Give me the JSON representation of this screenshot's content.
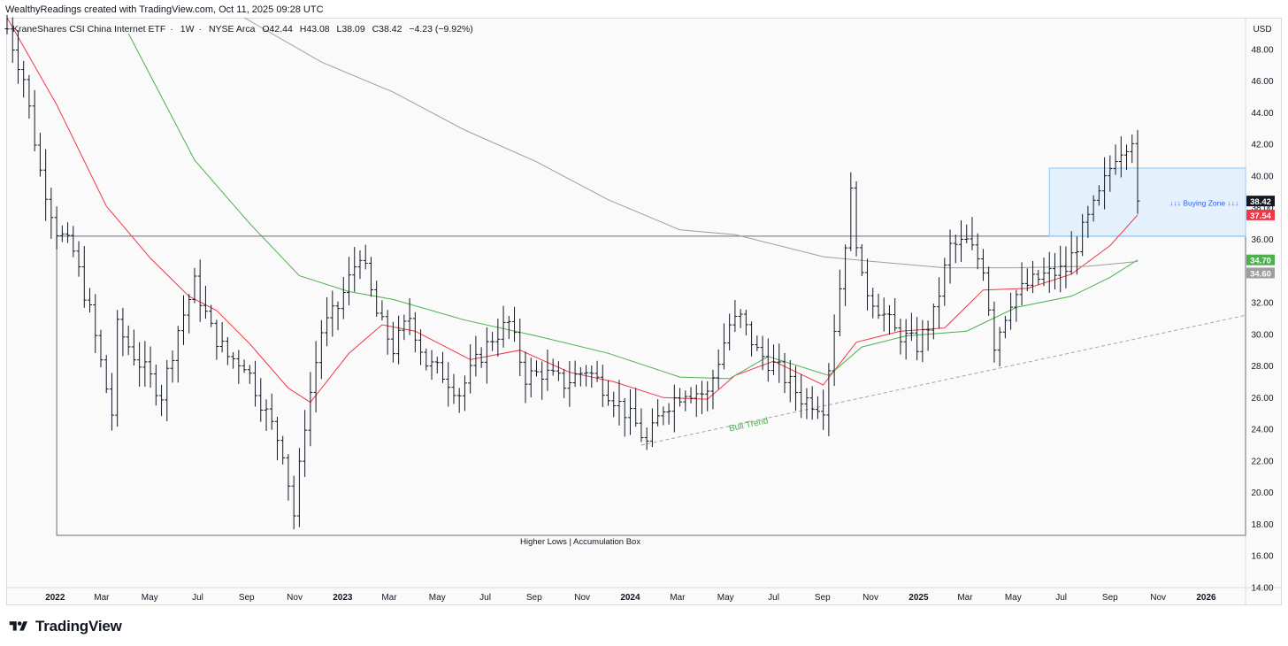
{
  "caption": "WealthyReadings created with TradingView.com, Oct 11, 2025 09:28 UTC",
  "header": {
    "symbol": "KraneShares CSI China Internet ETF",
    "interval": "1W",
    "exchange": "NYSE Arca",
    "open": "O42.44",
    "high": "H43.08",
    "low": "L38.09",
    "close": "C38.42",
    "change": "−4.23 (−9.92%)"
  },
  "currency": "USD",
  "footer": {
    "brand": "TradingView",
    "logo_icon": "tradingview-logo-icon"
  },
  "colors": {
    "up": "#131722",
    "ma_fast": "#f23645",
    "ma_mid": "#4caf50",
    "ma_slow": "#9e9e9e",
    "zone": "#bbdefb",
    "zone_label": "#2962ff",
    "trend": "#a5a5a5",
    "trend_label": "#4caf50"
  },
  "chart_data": {
    "type": "ohlc_bar",
    "title": "KraneShares CSI China Internet ETF · 1W · NYSE Arca",
    "y_axis": {
      "min": 14,
      "max": 50,
      "ticks": [
        14,
        16,
        18,
        20,
        22,
        24,
        26,
        28,
        30,
        32,
        34,
        36,
        38,
        40,
        42,
        44,
        46,
        48
      ],
      "tick_labels": [
        "14.00",
        "16.00",
        "18.00",
        "20.00",
        "22.00",
        "24.00",
        "26.00",
        "28.00",
        "30.00",
        "32.00",
        "34.00",
        "36.00",
        "38.00",
        "40.00",
        "42.00",
        "44.00",
        "46.00",
        "48.00"
      ]
    },
    "x_axis": {
      "start": "2021-11-01",
      "end": "2026-02-20",
      "ticks": [
        {
          "date": "2022-01-01",
          "label": "2022",
          "bold": true
        },
        {
          "date": "2022-03-01",
          "label": "Mar"
        },
        {
          "date": "2022-05-01",
          "label": "May"
        },
        {
          "date": "2022-07-01",
          "label": "Jul"
        },
        {
          "date": "2022-09-01",
          "label": "Sep"
        },
        {
          "date": "2022-11-01",
          "label": "Nov"
        },
        {
          "date": "2023-01-01",
          "label": "2023",
          "bold": true
        },
        {
          "date": "2023-03-01",
          "label": "Mar"
        },
        {
          "date": "2023-05-01",
          "label": "May"
        },
        {
          "date": "2023-07-01",
          "label": "Jul"
        },
        {
          "date": "2023-09-01",
          "label": "Sep"
        },
        {
          "date": "2023-11-01",
          "label": "Nov"
        },
        {
          "date": "2024-01-01",
          "label": "2024",
          "bold": true
        },
        {
          "date": "2024-03-01",
          "label": "Mar"
        },
        {
          "date": "2024-05-01",
          "label": "May"
        },
        {
          "date": "2024-07-01",
          "label": "Jul"
        },
        {
          "date": "2024-09-01",
          "label": "Sep"
        },
        {
          "date": "2024-11-01",
          "label": "Nov"
        },
        {
          "date": "2025-01-01",
          "label": "2025",
          "bold": true
        },
        {
          "date": "2025-03-01",
          "label": "Mar"
        },
        {
          "date": "2025-05-01",
          "label": "May"
        },
        {
          "date": "2025-07-01",
          "label": "Jul"
        },
        {
          "date": "2025-09-01",
          "label": "Sep"
        },
        {
          "date": "2025-11-01",
          "label": "Nov"
        },
        {
          "date": "2026-01-01",
          "label": "2026",
          "bold": true
        }
      ]
    },
    "close_series": [
      {
        "date": "2021-11-01",
        "close": 49.3
      },
      {
        "date": "2021-11-22",
        "close": 46.2
      },
      {
        "date": "2021-12-13",
        "close": 40.3
      },
      {
        "date": "2022-01-03",
        "close": 36.6
      },
      {
        "date": "2022-01-24",
        "close": 35.2
      },
      {
        "date": "2022-02-14",
        "close": 31.4
      },
      {
        "date": "2022-03-14",
        "close": 25.0
      },
      {
        "date": "2022-03-21",
        "close": 30.4
      },
      {
        "date": "2022-04-11",
        "close": 28.7
      },
      {
        "date": "2022-05-02",
        "close": 27.2
      },
      {
        "date": "2022-05-16",
        "close": 26.2
      },
      {
        "date": "2022-06-06",
        "close": 30.3
      },
      {
        "date": "2022-06-27",
        "close": 33.2
      },
      {
        "date": "2022-07-18",
        "close": 30.3
      },
      {
        "date": "2022-08-08",
        "close": 28.6
      },
      {
        "date": "2022-08-29",
        "close": 28.2
      },
      {
        "date": "2022-09-26",
        "close": 25.0
      },
      {
        "date": "2022-10-17",
        "close": 22.7
      },
      {
        "date": "2022-10-31",
        "close": 18.6
      },
      {
        "date": "2022-11-14",
        "close": 24.4
      },
      {
        "date": "2022-12-05",
        "close": 30.2
      },
      {
        "date": "2022-12-26",
        "close": 31.7
      },
      {
        "date": "2023-01-23",
        "close": 35.2
      },
      {
        "date": "2023-02-13",
        "close": 31.3
      },
      {
        "date": "2023-03-06",
        "close": 29.1
      },
      {
        "date": "2023-03-27",
        "close": 31.1
      },
      {
        "date": "2023-04-17",
        "close": 28.2
      },
      {
        "date": "2023-05-08",
        "close": 27.5
      },
      {
        "date": "2023-05-29",
        "close": 26.3
      },
      {
        "date": "2023-06-19",
        "close": 28.2
      },
      {
        "date": "2023-07-10",
        "close": 29.8
      },
      {
        "date": "2023-07-31",
        "close": 30.7
      },
      {
        "date": "2023-08-21",
        "close": 27.3
      },
      {
        "date": "2023-09-11",
        "close": 27.6
      },
      {
        "date": "2023-10-09",
        "close": 26.9
      },
      {
        "date": "2023-11-06",
        "close": 27.8
      },
      {
        "date": "2023-12-04",
        "close": 26.4
      },
      {
        "date": "2024-01-08",
        "close": 24.3
      },
      {
        "date": "2024-01-22",
        "close": 23.1
      },
      {
        "date": "2024-02-12",
        "close": 25.4
      },
      {
        "date": "2024-03-11",
        "close": 26.5
      },
      {
        "date": "2024-04-08",
        "close": 26.2
      },
      {
        "date": "2024-05-06",
        "close": 30.6
      },
      {
        "date": "2024-05-20",
        "close": 31.0
      },
      {
        "date": "2024-06-10",
        "close": 28.9
      },
      {
        "date": "2024-07-08",
        "close": 27.7
      },
      {
        "date": "2024-08-05",
        "close": 26.0
      },
      {
        "date": "2024-09-02",
        "close": 25.5
      },
      {
        "date": "2024-09-23",
        "close": 33.0
      },
      {
        "date": "2024-10-07",
        "close": 38.8
      },
      {
        "date": "2024-10-21",
        "close": 33.3
      },
      {
        "date": "2024-11-11",
        "close": 31.7
      },
      {
        "date": "2024-12-02",
        "close": 30.2
      },
      {
        "date": "2024-12-30",
        "close": 29.3
      },
      {
        "date": "2025-01-20",
        "close": 31.2
      },
      {
        "date": "2025-02-10",
        "close": 35.5
      },
      {
        "date": "2025-03-03",
        "close": 35.8
      },
      {
        "date": "2025-03-24",
        "close": 34.3
      },
      {
        "date": "2025-04-07",
        "close": 29.4
      },
      {
        "date": "2025-04-28",
        "close": 32.2
      },
      {
        "date": "2025-05-19",
        "close": 33.1
      },
      {
        "date": "2025-06-09",
        "close": 33.7
      },
      {
        "date": "2025-07-07",
        "close": 34.1
      },
      {
        "date": "2025-07-28",
        "close": 36.5
      },
      {
        "date": "2025-08-18",
        "close": 38.7
      },
      {
        "date": "2025-09-08",
        "close": 41.4
      },
      {
        "date": "2025-09-29",
        "close": 42.5
      },
      {
        "date": "2025-10-06",
        "close": 38.42
      }
    ],
    "moving_averages": [
      {
        "name": "MA fast",
        "color": "red",
        "points": [
          [
            "2021-11-01",
            50.0
          ],
          [
            "2022-01-03",
            44.5
          ],
          [
            "2022-03-07",
            38.1
          ],
          [
            "2022-05-02",
            34.8
          ],
          [
            "2022-06-20",
            32.4
          ],
          [
            "2022-07-25",
            31.5
          ],
          [
            "2022-09-05",
            29.4
          ],
          [
            "2022-10-24",
            26.6
          ],
          [
            "2022-11-21",
            25.7
          ],
          [
            "2023-01-09",
            28.8
          ],
          [
            "2023-02-20",
            30.6
          ],
          [
            "2023-04-03",
            30.2
          ],
          [
            "2023-06-12",
            28.4
          ],
          [
            "2023-08-14",
            29.0
          ],
          [
            "2023-10-16",
            27.6
          ],
          [
            "2023-12-11",
            27.0
          ],
          [
            "2024-02-12",
            26.0
          ],
          [
            "2024-04-08",
            25.9
          ],
          [
            "2024-05-13",
            27.4
          ],
          [
            "2024-07-01",
            28.3
          ],
          [
            "2024-09-02",
            26.8
          ],
          [
            "2024-10-14",
            29.5
          ],
          [
            "2024-12-09",
            30.2
          ],
          [
            "2025-02-03",
            30.4
          ],
          [
            "2025-03-24",
            32.8
          ],
          [
            "2025-05-19",
            32.9
          ],
          [
            "2025-07-14",
            33.8
          ],
          [
            "2025-09-01",
            35.6
          ],
          [
            "2025-10-06",
            37.54
          ]
        ]
      },
      {
        "name": "MA mid",
        "color": "green",
        "points": [
          [
            "2022-04-04",
            49.0
          ],
          [
            "2022-06-27",
            41.0
          ],
          [
            "2022-09-05",
            37.0
          ],
          [
            "2022-11-07",
            33.7
          ],
          [
            "2023-01-09",
            32.7
          ],
          [
            "2023-03-06",
            32.2
          ],
          [
            "2023-06-05",
            30.9
          ],
          [
            "2023-09-04",
            29.9
          ],
          [
            "2023-12-04",
            28.8
          ],
          [
            "2024-03-04",
            27.3
          ],
          [
            "2024-05-06",
            27.2
          ],
          [
            "2024-06-24",
            28.6
          ],
          [
            "2024-09-09",
            27.4
          ],
          [
            "2024-10-21",
            29.2
          ],
          [
            "2024-12-16",
            29.9
          ],
          [
            "2025-03-03",
            30.2
          ],
          [
            "2025-05-05",
            31.7
          ],
          [
            "2025-07-14",
            32.4
          ],
          [
            "2025-09-01",
            33.6
          ],
          [
            "2025-10-06",
            34.7
          ]
        ]
      },
      {
        "name": "MA slow",
        "color": "gray",
        "points": [
          [
            "2022-08-29",
            50.0
          ],
          [
            "2022-12-05",
            47.2
          ],
          [
            "2023-03-06",
            45.3
          ],
          [
            "2023-06-05",
            42.9
          ],
          [
            "2023-09-04",
            40.9
          ],
          [
            "2023-12-04",
            38.5
          ],
          [
            "2024-03-04",
            36.6
          ],
          [
            "2024-05-13",
            36.3
          ],
          [
            "2024-09-02",
            34.9
          ],
          [
            "2024-11-04",
            34.6
          ],
          [
            "2025-02-03",
            34.2
          ],
          [
            "2025-05-05",
            34.2
          ],
          [
            "2025-08-04",
            34.3
          ],
          [
            "2025-10-06",
            34.6
          ]
        ]
      }
    ],
    "price_labels": [
      {
        "value": 38.42,
        "label": "38.42",
        "color": "#131722"
      },
      {
        "value": 37.54,
        "label": "37.54",
        "color": "#f23645"
      },
      {
        "value": 34.7,
        "label": "34.70",
        "color": "#4caf50"
      },
      {
        "value": 34.6,
        "label": "34.60",
        "color": "#9e9e9e"
      }
    ],
    "annotations": [
      {
        "kind": "box",
        "name": "Higher Lows | Accumulation Box",
        "from": "2022-01-03",
        "to": "2026-02-20",
        "top": 36.2,
        "bottom": 17.3,
        "label": "Higher Lows | Accumulation Box"
      },
      {
        "kind": "zone",
        "name": "Buying Zone",
        "from": "2025-06-16",
        "to": "2026-02-20",
        "top": 40.5,
        "bottom": 36.2,
        "label": "↓↓↓ Buying Zone ↓↓↓"
      },
      {
        "kind": "trendline",
        "name": "Bull Trend",
        "from": [
          "2024-01-15",
          23.0
        ],
        "to": [
          "2026-02-20",
          31.2
        ],
        "label": "Bull Trend"
      }
    ],
    "legend": "none",
    "grid": false
  }
}
